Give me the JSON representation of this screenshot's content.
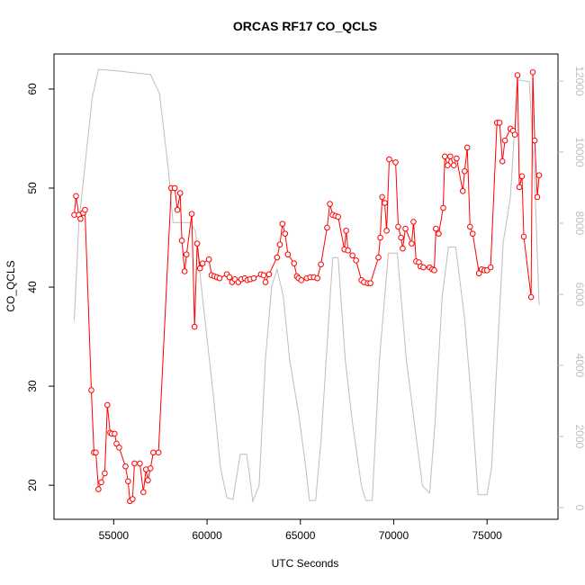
{
  "chart_data": {
    "type": "line",
    "title": "ORCAS RF17 CO_QCLS",
    "x_label": "UTC Seconds",
    "y_label": "CO_QCLS",
    "xlim": [
      51800,
      78800
    ],
    "ylim": [
      16.56,
      63.54
    ],
    "y2lim": [
      -330,
      12760
    ],
    "xticks": [
      55000,
      60000,
      65000,
      70000,
      75000
    ],
    "yticks": [
      20,
      30,
      40,
      50,
      60
    ],
    "y2ticks": [
      0,
      2000,
      4000,
      6000,
      8000,
      10000,
      12000
    ],
    "markers": "circle",
    "series": [
      {
        "color": "#ff0000",
        "x": [
          52885,
          52980,
          53125,
          53220,
          53365,
          53460,
          53800,
          53940,
          54040,
          54180,
          54330,
          54520,
          54660,
          54810,
          54900,
          55050,
          55150,
          55290,
          55630,
          55770,
          55870,
          56010,
          56110,
          56400,
          56590,
          56730,
          56830,
          56970,
          57120,
          57400,
          58080,
          58270,
          58410,
          58560,
          58650,
          58800,
          58900,
          59180,
          59330,
          59470,
          59620,
          59760,
          60100,
          60240,
          60390,
          60530,
          60670,
          61060,
          61200,
          61340,
          61490,
          61680,
          61830,
          62020,
          62160,
          62310,
          62500,
          62890,
          63030,
          63130,
          63320,
          63750,
          63900,
          64040,
          64180,
          64330,
          64660,
          64810,
          64900,
          65050,
          65340,
          65530,
          65720,
          65910,
          66100,
          66430,
          66580,
          66730,
          66880,
          67020,
          67360,
          67450,
          67550,
          67790,
          67980,
          68270,
          68410,
          68610,
          68750,
          69180,
          69280,
          69380,
          69520,
          69620,
          69760,
          70100,
          70240,
          70390,
          70480,
          70630,
          70960,
          71060,
          71200,
          71350,
          71440,
          71590,
          71920,
          72070,
          72170,
          72260,
          72410,
          72650,
          72740,
          72890,
          73030,
          73220,
          73370,
          73700,
          73800,
          73940,
          74090,
          74230,
          74570,
          74710,
          74860,
          75000,
          75190,
          75530,
          75670,
          75820,
          75960,
          76250,
          76390,
          76490,
          76630,
          76730,
          76870,
          76970,
          77360,
          77450,
          77550,
          77690,
          77790
        ],
        "values": [
          47.3,
          49.2,
          47.3,
          46.9,
          47.5,
          47.8,
          29.6,
          23.3,
          23.3,
          19.6,
          20.3,
          21.2,
          28.1,
          25.3,
          25.2,
          25.2,
          24.2,
          23.8,
          21.9,
          20.4,
          18.4,
          18.6,
          22.2,
          22.2,
          19.3,
          21.6,
          20.5,
          21.7,
          23.3,
          23.3,
          50.0,
          50.0,
          47.8,
          49.5,
          44.7,
          41.6,
          43.3,
          47.4,
          36.0,
          44.4,
          41.9,
          42.4,
          42.8,
          41.2,
          41.1,
          41.0,
          40.9,
          41.3,
          41.0,
          40.5,
          40.8,
          40.5,
          40.8,
          40.9,
          40.7,
          40.8,
          40.9,
          41.3,
          41.2,
          40.5,
          41.3,
          43.0,
          44.3,
          46.4,
          45.4,
          43.3,
          42.4,
          41.1,
          40.9,
          40.7,
          40.9,
          41.0,
          41.0,
          40.9,
          42.3,
          46.0,
          48.4,
          47.3,
          47.2,
          47.1,
          43.8,
          45.7,
          43.7,
          43.2,
          42.7,
          40.7,
          40.5,
          40.4,
          40.4,
          43.0,
          45.0,
          49.1,
          48.5,
          45.7,
          52.9,
          52.6,
          46.1,
          45.0,
          43.9,
          45.9,
          44.4,
          46.6,
          42.6,
          42.5,
          42.1,
          42.0,
          42.0,
          41.8,
          41.7,
          45.9,
          45.4,
          48.0,
          53.2,
          52.3,
          53.2,
          52.3,
          53.0,
          49.7,
          51.7,
          54.1,
          46.1,
          45.4,
          41.4,
          41.8,
          41.7,
          41.7,
          42.0,
          56.6,
          56.6,
          52.7,
          54.8,
          56.0,
          55.8,
          55.4,
          61.4,
          50.1,
          51.2,
          45.1,
          39.0,
          61.7,
          54.8,
          49.1,
          51.3
        ]
      },
      {
        "color": "#bebebe",
        "axis": "y2",
        "x": [
          52885,
          53125,
          53460,
          53846,
          54183,
          55288,
          56971,
          57452,
          57933,
          58173,
          59135,
          59375,
          59856,
          60337,
          60721,
          61058,
          61394,
          61539,
          61779,
          62116,
          62260,
          62452,
          62789,
          63126,
          63462,
          63751,
          64087,
          64424,
          64904,
          65289,
          65481,
          65818,
          66106,
          66443,
          66731,
          67020,
          67404,
          67789,
          68270,
          68510,
          68847,
          69232,
          69712,
          70193,
          70674,
          71539,
          71924,
          72212,
          72597,
          72933,
          73318,
          73798,
          74183,
          74519,
          75000,
          75240,
          75481,
          75865,
          76250,
          76635,
          77260,
          77548,
          77789
        ],
        "values": [
          5250,
          7970,
          9620,
          11520,
          12330,
          12280,
          12180,
          11650,
          9490,
          8020,
          8020,
          7770,
          5430,
          3150,
          1120,
          280,
          230,
          740,
          1500,
          1500,
          990,
          180,
          610,
          4160,
          6240,
          6700,
          5940,
          4160,
          2640,
          1120,
          200,
          200,
          1880,
          4670,
          7030,
          7030,
          4160,
          2390,
          610,
          200,
          200,
          4160,
          7160,
          7160,
          4160,
          610,
          410,
          2390,
          5940,
          7330,
          7330,
          5300,
          2890,
          360,
          360,
          1120,
          3650,
          7460,
          8730,
          12030,
          11980,
          9240,
          5690
        ]
      }
    ]
  }
}
